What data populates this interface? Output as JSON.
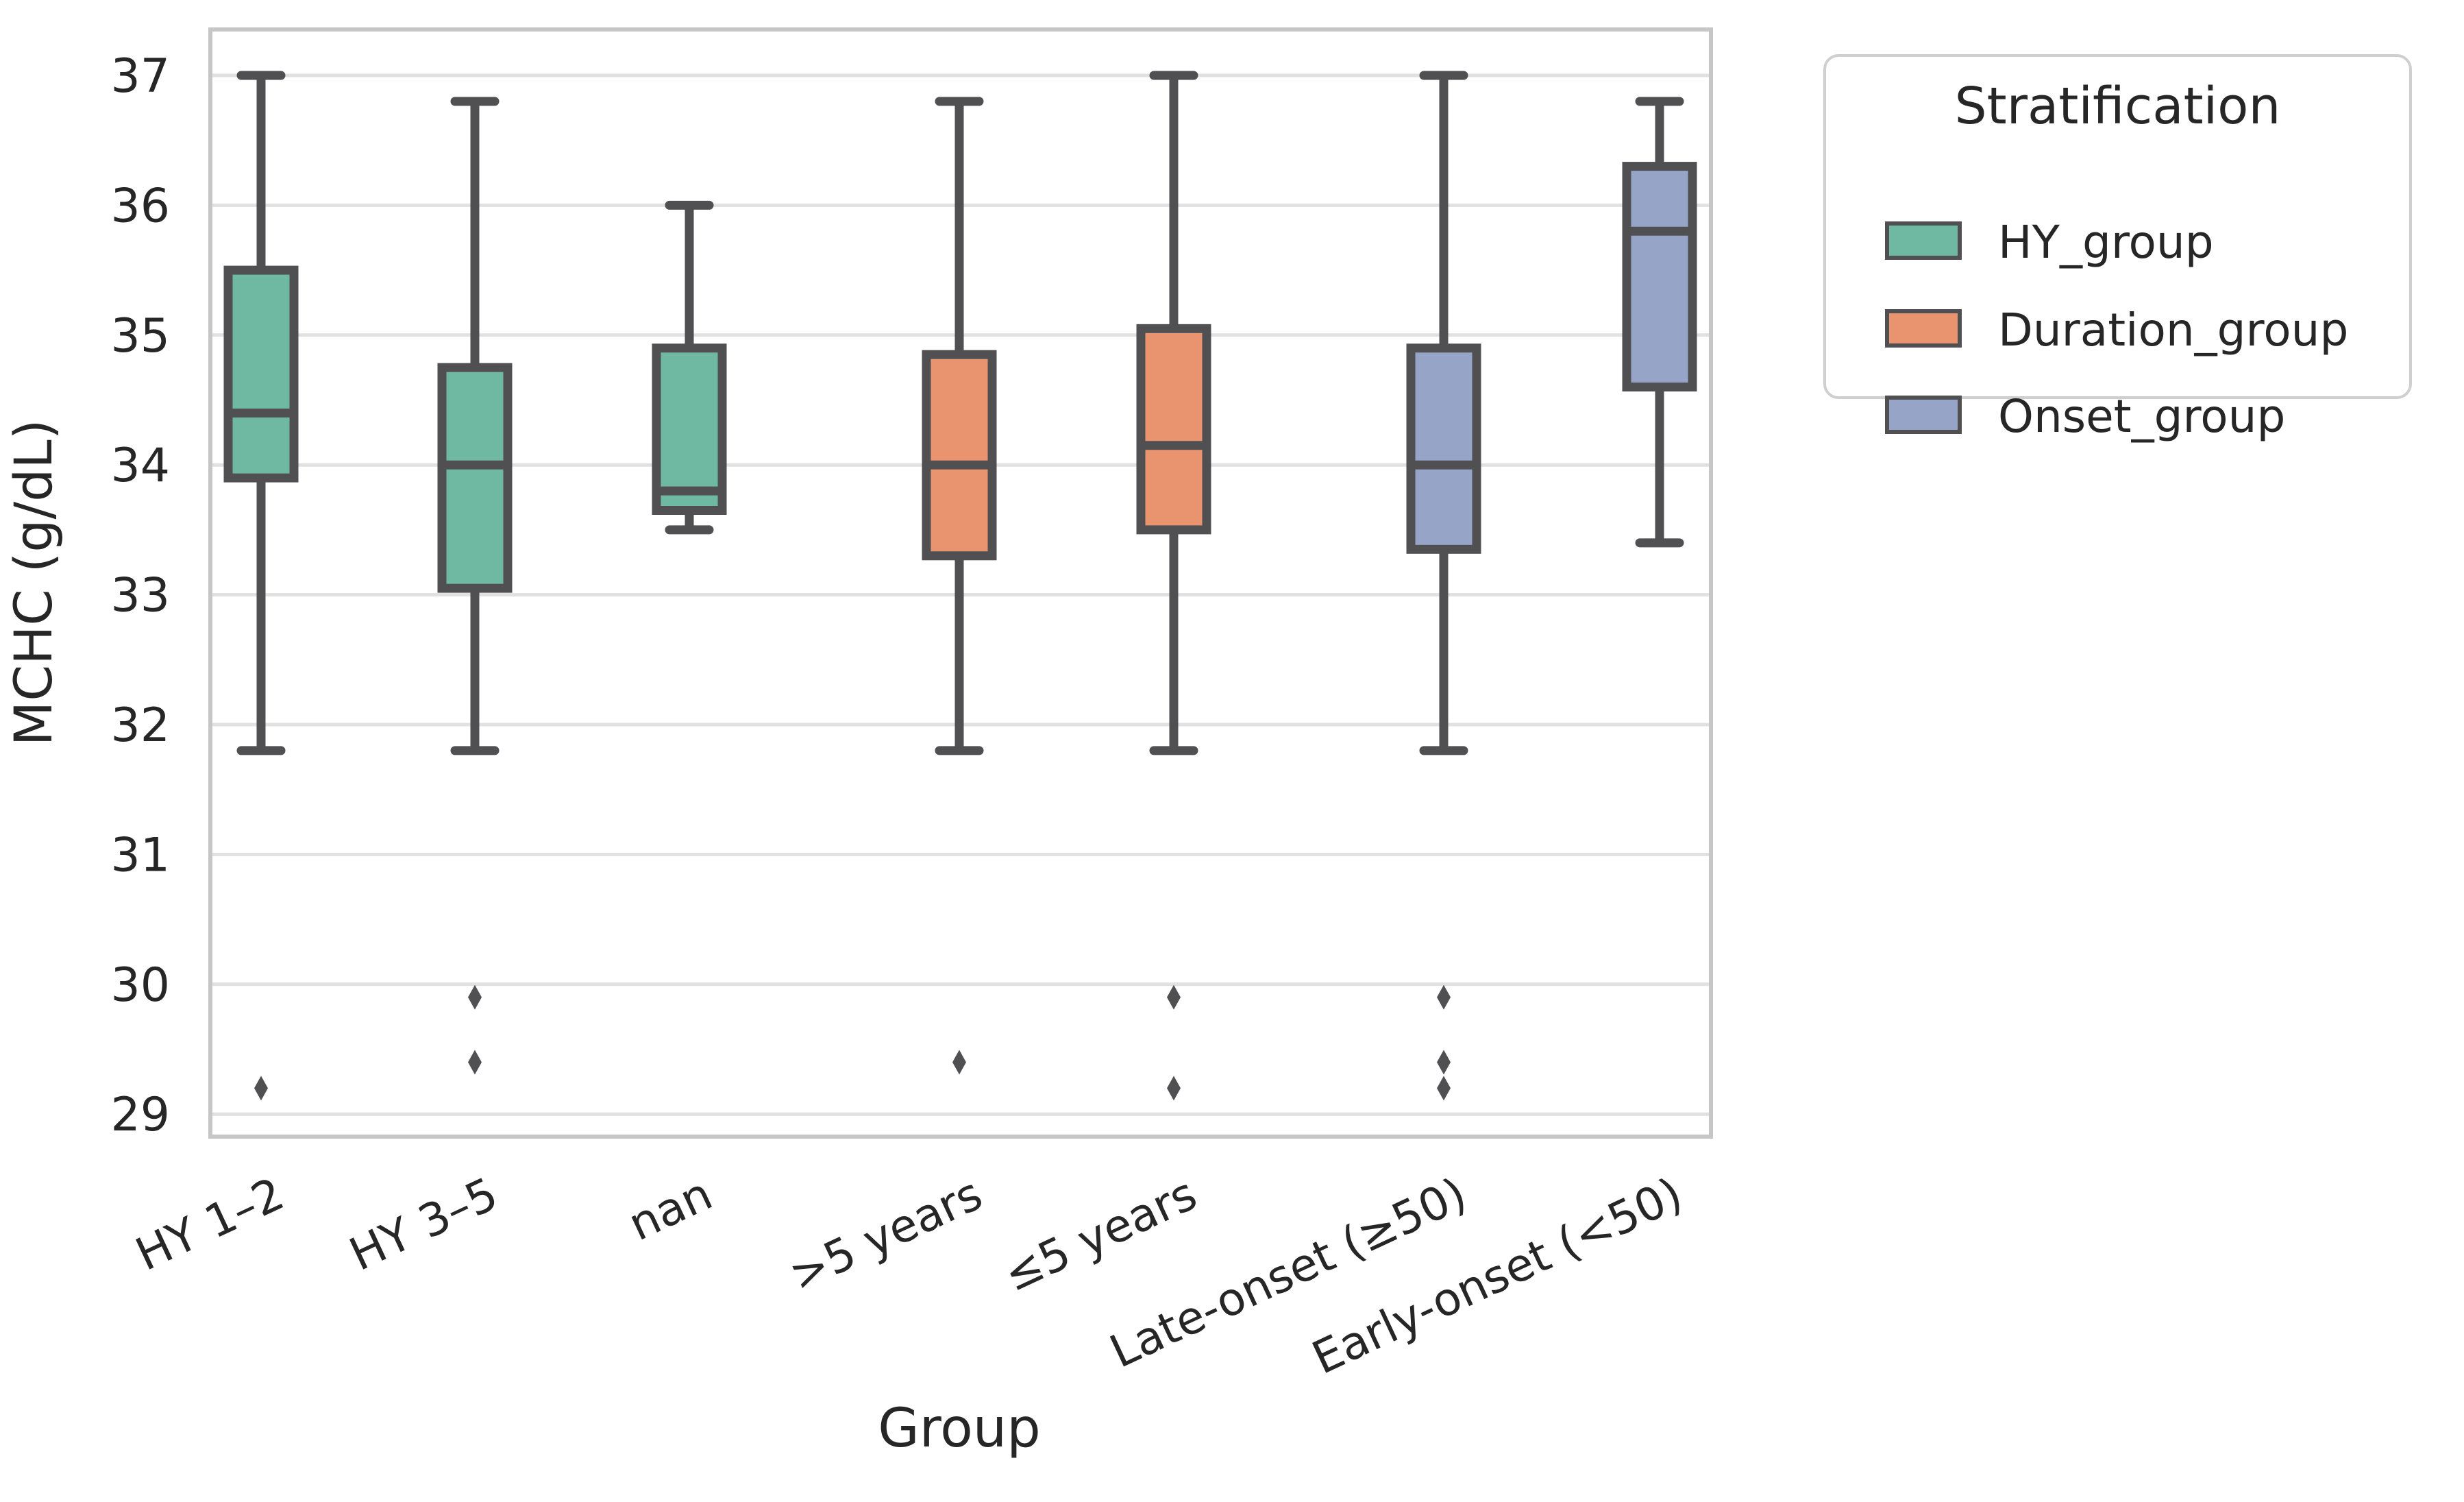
{
  "chart_data": {
    "type": "box",
    "title": "",
    "xlabel": "Group",
    "ylabel": "MCHC (g/dL)",
    "ylim": [
      28.83,
      37.35
    ],
    "yticks": [
      37,
      36,
      35,
      34,
      33,
      32,
      31,
      30,
      29
    ],
    "grid": "horizontal",
    "categories": [
      "HY 1–2",
      "HY 3–5",
      "nan",
      ">5 years",
      "≤5 years",
      "Late-onset (≥50)",
      "Early-onset (<50)"
    ],
    "series": [
      {
        "category": "HY 1–2",
        "stratification": "HY_group",
        "whislo": 31.8,
        "q1": 33.9,
        "med": 34.4,
        "q3": 35.5,
        "whishi": 37.0,
        "fliers": [
          29.2
        ]
      },
      {
        "category": "HY 3–5",
        "stratification": "HY_group",
        "whislo": 31.8,
        "q1": 33.05,
        "med": 34.0,
        "q3": 34.75,
        "whishi": 36.8,
        "fliers": [
          29.9,
          29.4
        ]
      },
      {
        "category": "nan",
        "stratification": "HY_group",
        "whislo": 33.5,
        "q1": 33.65,
        "med": 33.8,
        "q3": 34.9,
        "whishi": 36.0,
        "fliers": []
      },
      {
        "category": ">5 years",
        "stratification": "Duration_group",
        "whislo": 31.8,
        "q1": 33.3,
        "med": 34.0,
        "q3": 34.85,
        "whishi": 36.8,
        "fliers": [
          29.4
        ]
      },
      {
        "category": "≤5 years",
        "stratification": "Duration_group",
        "whislo": 31.8,
        "q1": 33.5,
        "med": 34.15,
        "q3": 35.05,
        "whishi": 37.0,
        "fliers": [
          29.9,
          29.2
        ]
      },
      {
        "category": "Late-onset (≥50)",
        "stratification": "Onset_group",
        "whislo": 31.8,
        "q1": 33.35,
        "med": 34.0,
        "q3": 34.9,
        "whishi": 37.0,
        "fliers": [
          29.9,
          29.4,
          29.2
        ]
      },
      {
        "category": "Early-onset (<50)",
        "stratification": "Onset_group",
        "whislo": 33.4,
        "q1": 34.6,
        "med": 35.8,
        "q3": 36.3,
        "whishi": 36.8,
        "fliers": []
      }
    ],
    "legend": {
      "title": "Stratification",
      "position": "outside upper right",
      "entries": [
        {
          "label": "HY_group",
          "color": "#6fb9a3"
        },
        {
          "label": "Duration_group",
          "color": "#e9946f"
        },
        {
          "label": "Onset_group",
          "color": "#95a4c7"
        }
      ]
    },
    "colors": {
      "HY_group": "#6fb9a3",
      "Duration_group": "#e9946f",
      "Onset_group": "#95a4c7",
      "box_line": "#505053",
      "grid_line": "#e1e1e1",
      "spine": "#c6c6c6",
      "text": "#262626"
    }
  }
}
